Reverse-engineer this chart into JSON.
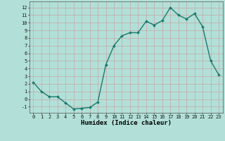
{
  "x": [
    0,
    1,
    2,
    3,
    4,
    5,
    6,
    7,
    8,
    9,
    10,
    11,
    12,
    13,
    14,
    15,
    16,
    17,
    18,
    19,
    20,
    21,
    22,
    23
  ],
  "y": [
    2.2,
    1.0,
    0.3,
    0.3,
    -0.5,
    -1.3,
    -1.2,
    -1.1,
    -0.4,
    4.5,
    7.0,
    8.3,
    8.7,
    8.7,
    10.2,
    9.7,
    10.3,
    12.0,
    11.0,
    10.5,
    11.2,
    9.5,
    5.0,
    3.2
  ],
  "xlabel": "Humidex (Indice chaleur)",
  "line_color": "#1a7a6e",
  "bg_color": "#b2e0d8",
  "grid_color_major": "#cc9999",
  "xlim": [
    -0.5,
    23.5
  ],
  "ylim": [
    -1.8,
    12.8
  ],
  "yticks": [
    -1,
    0,
    1,
    2,
    3,
    4,
    5,
    6,
    7,
    8,
    9,
    10,
    11,
    12
  ],
  "xticks": [
    0,
    1,
    2,
    3,
    4,
    5,
    6,
    7,
    8,
    9,
    10,
    11,
    12,
    13,
    14,
    15,
    16,
    17,
    18,
    19,
    20,
    21,
    22,
    23
  ],
  "marker_size": 2.0,
  "line_width": 1.0,
  "tick_fontsize": 5.0,
  "xlabel_fontsize": 6.5
}
